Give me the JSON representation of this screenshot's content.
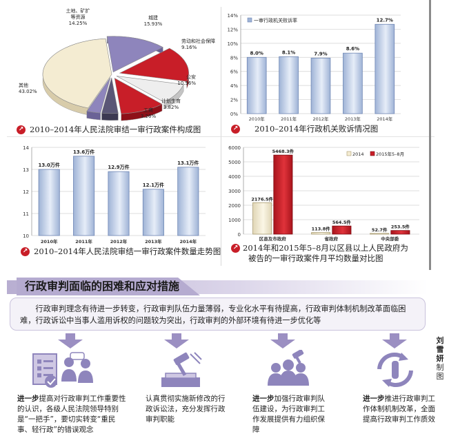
{
  "charts": {
    "pie": {
      "caption": "2010–2014年人民法院审结一审行政案件构成图",
      "labels": [
        {
          "name": "城建",
          "value": "15.93%"
        },
        {
          "name": "劳动和社会保障",
          "value": "9.16%"
        },
        {
          "name": "公安",
          "value": "10.56%"
        },
        {
          "name": "计划生育",
          "value": "3.82%"
        },
        {
          "name": "工商",
          "value": "3.26%"
        },
        {
          "name": "其他",
          "value": "43.02%"
        },
        {
          "name": "土地、矿扩\n等资源",
          "value": "14.25%"
        }
      ]
    },
    "loss_rate": {
      "caption": "2010–2014年行政机关败诉情况图",
      "legend": "一审行政机关败诉率",
      "y_ticks": [
        "0%",
        "2%",
        "4%",
        "6%",
        "8%",
        "10%",
        "12%",
        "14%"
      ],
      "x_labels": [
        "2010年",
        "2011年",
        "2012年",
        "2013年",
        "2014年"
      ],
      "value_labels": [
        "8.0%",
        "8.1%",
        "7.9%",
        "8.6%",
        "12.7%"
      ]
    },
    "case_trend": {
      "caption": "2010–2014年人民法院审结一审行政案件数量走势图",
      "y_ticks": [
        "10",
        "11",
        "12",
        "13",
        "14"
      ],
      "x_labels": [
        "2010年",
        "2011年",
        "2012年",
        "2013年",
        "2014年"
      ],
      "value_labels": [
        "13.0万件",
        "13.6万件",
        "12.9万件",
        "12.1万件",
        "13.1万件"
      ]
    },
    "monthly_avg": {
      "caption_line1": "2014年和2015年5–8月以区县以上人民政府为",
      "caption_line2": "被告的一审行政案件月平均数量对比图",
      "legend": [
        "2014",
        "2015年5–8月"
      ],
      "y_ticks": [
        "0",
        "1000",
        "2000",
        "3000",
        "4000",
        "5000",
        "6000"
      ],
      "x_labels": [
        "区县及市政府",
        "省政府",
        "中央部委"
      ],
      "value_labels": [
        "2176.5件",
        "5468.3件",
        "113.8件",
        "564.5件",
        "52.7件",
        "253.5件"
      ]
    }
  },
  "chart_data": [
    {
      "type": "pie",
      "title": "2010–2014年人民法院审结一审行政案件构成图",
      "categories": [
        "其他",
        "土地、矿扩等资源",
        "城建",
        "劳动和社会保障",
        "公安",
        "计划生育",
        "工商"
      ],
      "values": [
        43.02,
        14.25,
        15.93,
        9.16,
        10.56,
        3.82,
        3.26
      ],
      "colors": [
        "#f4ecd2",
        "#8e85bc",
        "#c81e28",
        "#eeeeee",
        "#c81e28",
        "#5a5676",
        "#8e85bc"
      ]
    },
    {
      "type": "bar",
      "title": "2010–2014年行政机关败诉情况图",
      "categories": [
        "2010年",
        "2011年",
        "2012年",
        "2013年",
        "2014年"
      ],
      "series": [
        {
          "name": "一审行政机关败诉率",
          "values": [
            8.0,
            8.1,
            7.9,
            8.6,
            12.7
          ]
        }
      ],
      "ylabel": "",
      "ylim": [
        0,
        14
      ],
      "unit": "%",
      "grid": true
    },
    {
      "type": "bar",
      "title": "2010–2014年人民法院审结一审行政案件数量走势图",
      "categories": [
        "2010年",
        "2011年",
        "2012年",
        "2013年",
        "2014年"
      ],
      "values": [
        13.0,
        13.6,
        12.9,
        12.1,
        13.1
      ],
      "ylim": [
        10,
        14
      ],
      "unit": "万件",
      "grid": true
    },
    {
      "type": "bar",
      "title": "2014年和2015年5–8月以区县以上人民政府为被告的一审行政案件月平均数量对比图",
      "categories": [
        "区县及市政府",
        "省政府",
        "中央部委"
      ],
      "series": [
        {
          "name": "2014",
          "values": [
            2176.5,
            113.8,
            52.7
          ]
        },
        {
          "name": "2015年5–8月",
          "values": [
            5468.3,
            564.5,
            253.5
          ]
        }
      ],
      "ylim": [
        0,
        6000
      ],
      "unit": "件",
      "grid": true,
      "legend": "top-right"
    }
  ],
  "section": {
    "title": "行政审判面临的困难和应对措施",
    "intro": "行政审判理念有待进一步转变，行政审判队伍力量薄弱，专业化水平有待提高，行政审判体制机制改革面临困难，行政诉讼中当事人滥用诉权的问题较为突出，行政审判的外部环境有待进一步优化等",
    "measures": [
      {
        "bold": "进一步",
        "text": "提高对行政审判工作重要性的认识，各级人民法院领导特别是“一把手”，要切实转变“重民事、轻行政”的错误观念",
        "icon": "document-checklist-icon"
      },
      {
        "bold": "",
        "text": "认真贯彻实施新修改的行政诉讼法，充分发挥行政审判职能",
        "icon": "gavel-book-icon"
      },
      {
        "bold": "进一步",
        "text": "加强行政审判队伍建设，为行政审判工作发展提供有力组织保障",
        "icon": "team-gavel-icon"
      },
      {
        "bold": "进一步",
        "text": "推进行政审判工作体制机制改革，全面提高行政审判工作质效",
        "icon": "gear-cycle-icon"
      }
    ],
    "credit_name": "刘雪妍",
    "credit_role": "制图"
  }
}
